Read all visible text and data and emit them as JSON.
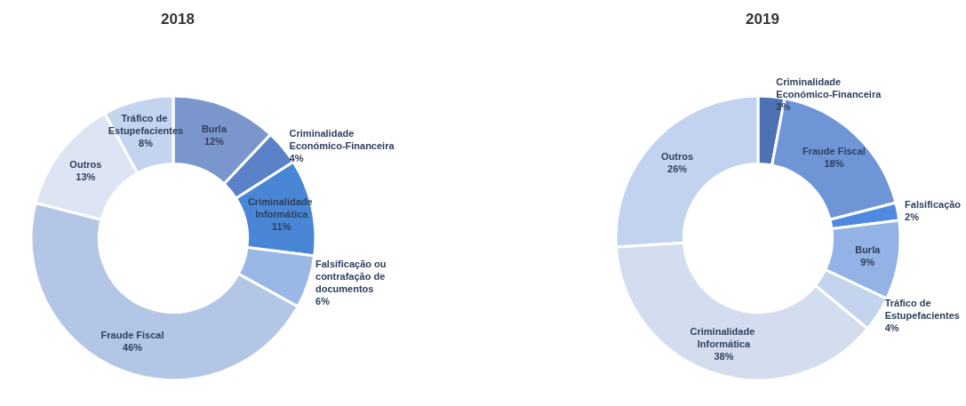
{
  "chart_data": [
    {
      "type": "donut",
      "title": "2018",
      "categories": [
        "Burla",
        "Criminalidade Económico-Financeira",
        "Criminalidade Informática",
        "Falsificação ou contrafação de documentos",
        "Fraude Fiscal",
        "Outros",
        "Tráfico de Estupefacientes"
      ],
      "values": [
        12,
        4,
        11,
        6,
        46,
        13,
        8
      ],
      "value_labels": [
        "12%",
        "4%",
        "11%",
        "6%",
        "46%",
        "13%",
        "8%"
      ],
      "colors": [
        "#7a96cc",
        "#5b82c8",
        "#4a86d6",
        "#9ab8e6",
        "#b4c6e6",
        "#dde4f4",
        "#c4d4ee"
      ]
    },
    {
      "type": "donut",
      "title": "2019",
      "categories": [
        "Criminalidade Económico-Financeira",
        "Fraude Fiscal",
        "Falsificação",
        "Burla",
        "Tráfico de Estupefacientes",
        "Criminalidade Informática",
        "Outros"
      ],
      "values": [
        3,
        18,
        2,
        9,
        4,
        38,
        26
      ],
      "value_labels": [
        "3%",
        "18%",
        "2%",
        "9%",
        "4%",
        "38%",
        "26%"
      ],
      "colors": [
        "#4d72b4",
        "#6e95d6",
        "#4f8ae0",
        "#93b2e6",
        "#c4d4ee",
        "#d4ddf0",
        "#c2d3ef"
      ]
    }
  ]
}
